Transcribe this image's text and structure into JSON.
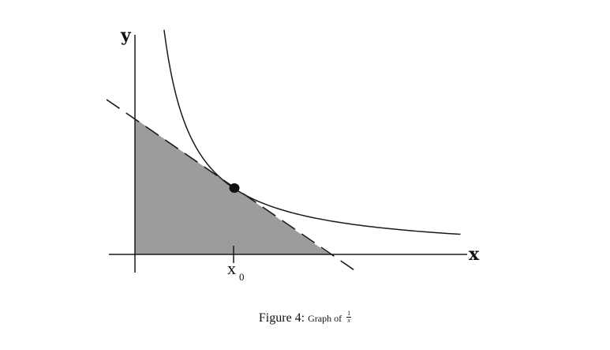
{
  "figure": {
    "y_label": "y",
    "x_label": "x",
    "point_label": "x",
    "point_label_subscript": "0"
  },
  "caption": {
    "prefix": "Figure 4:",
    "text": "Graph of",
    "frac_numerator": "1",
    "frac_denominator": "x"
  },
  "colors": {
    "shade": "#9e9b9b",
    "line": "#1a1a1a"
  },
  "chart_data": {
    "type": "line",
    "function": "y = 1/x",
    "x0": 1,
    "curve_x_range": [
      0.03,
      3.3
    ],
    "tangent": "y = -x/x0^2 + 2/x0",
    "shaded_region": "triangle bounded by the axes and the tangent line at x0",
    "grid": false
  }
}
